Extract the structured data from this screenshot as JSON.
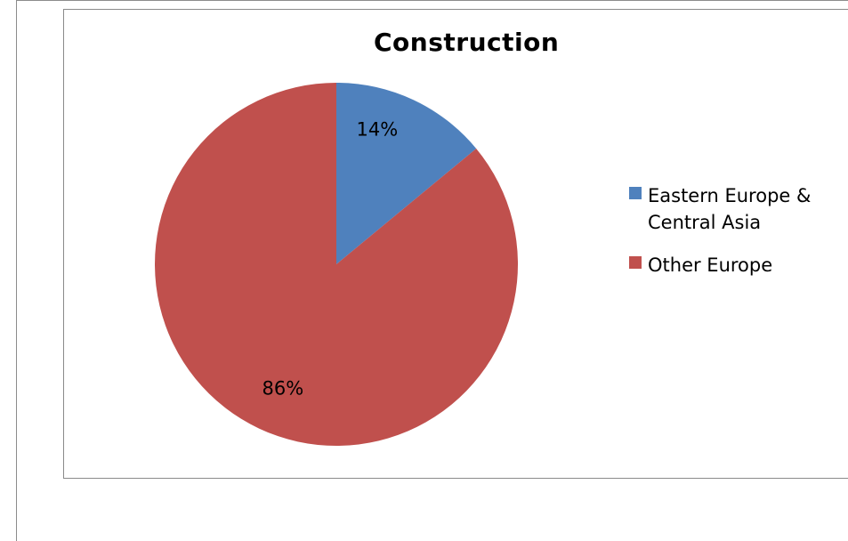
{
  "chart_data": {
    "type": "pie",
    "title": "Construction",
    "categories": [
      "Eastern Europe & Central Asia",
      "Other Europe"
    ],
    "values": [
      14,
      86
    ],
    "data_labels": [
      "14%",
      "86%"
    ],
    "colors": [
      "#4f81bd",
      "#c0504d"
    ],
    "legend_position": "right"
  }
}
